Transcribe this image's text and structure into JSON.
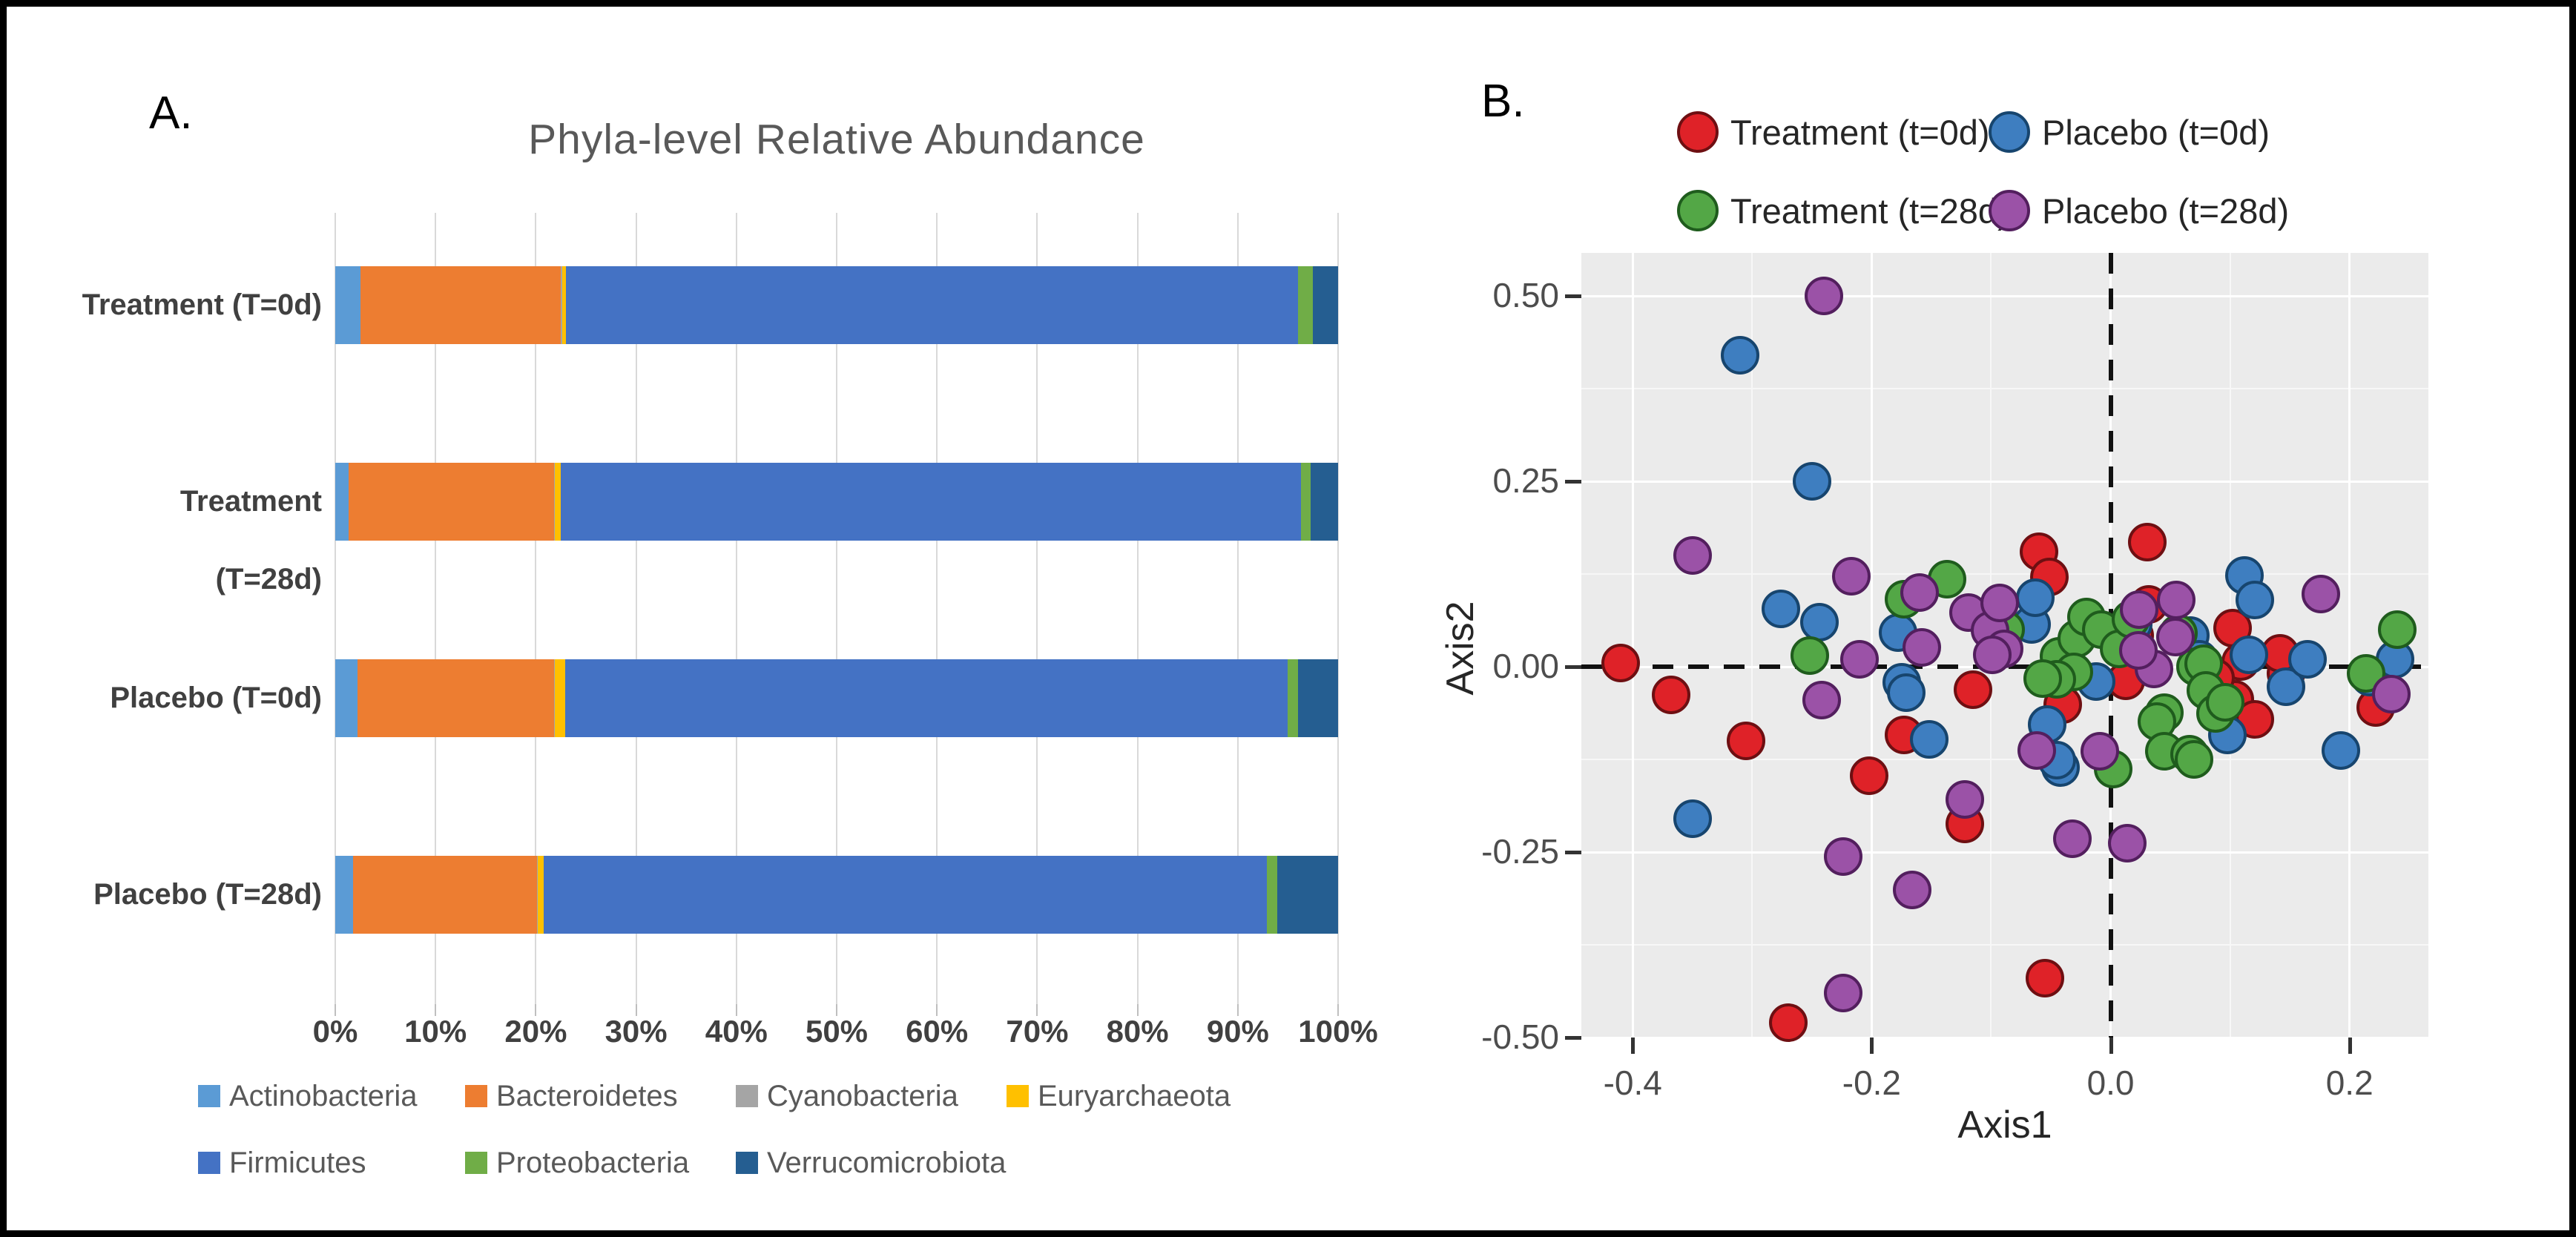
{
  "figure": {
    "panel_a_label": "A.",
    "panel_b_label": "B."
  },
  "chart_data": [
    {
      "type": "bar",
      "orientation": "horizontal-stacked",
      "title": "Phyla-level Relative Abundance",
      "categories": [
        "Treatment (T=0d)",
        "Treatment (T=28d)",
        "Placebo (T=0d)",
        "Placebo (T=28d)"
      ],
      "x_tick_labels": [
        "0%",
        "10%",
        "20%",
        "30%",
        "40%",
        "50%",
        "60%",
        "70%",
        "80%",
        "90%",
        "100%"
      ],
      "xlim": [
        0,
        100
      ],
      "grid": true,
      "legend_position": "bottom",
      "series": [
        {
          "name": "Actinobacteria",
          "color": "#5B9BD5",
          "values": [
            2.5,
            1.3,
            2.2,
            1.8
          ]
        },
        {
          "name": "Bacteroidetes",
          "color": "#ED7D31",
          "values": [
            20.0,
            20.5,
            19.6,
            18.3
          ]
        },
        {
          "name": "Cyanobacteria",
          "color": "#A5A5A5",
          "values": [
            0.1,
            0.1,
            0.1,
            0.1
          ]
        },
        {
          "name": "Euryarchaeota",
          "color": "#FFC000",
          "values": [
            0.4,
            0.6,
            1.0,
            0.6
          ]
        },
        {
          "name": "Firmicutes",
          "color": "#4472C4",
          "values": [
            73.0,
            73.8,
            72.1,
            72.1
          ]
        },
        {
          "name": "Proteobacteria",
          "color": "#70AD47",
          "values": [
            1.5,
            1.0,
            1.0,
            1.0
          ]
        },
        {
          "name": "Verrucomicrobiota",
          "color": "#255E91",
          "values": [
            2.5,
            2.7,
            4.0,
            6.1
          ]
        }
      ]
    },
    {
      "type": "scatter",
      "xlabel": "Axis1",
      "ylabel": "Axis2",
      "xlim": [
        -0.443,
        0.266
      ],
      "ylim": [
        -0.5,
        0.558
      ],
      "x_ticks": [
        -0.4,
        -0.2,
        0.0,
        0.2
      ],
      "y_ticks": [
        0.5,
        0.25,
        0.0,
        -0.25,
        -0.5
      ],
      "x_tick_labels": [
        "-0.4",
        "-0.2",
        "0.0",
        "0.2"
      ],
      "y_tick_labels": [
        "0.50",
        "0.25",
        "0.00",
        "-0.25",
        "-0.50"
      ],
      "x_minor_ticks": [
        -0.3,
        -0.1,
        0.1
      ],
      "y_minor_ticks": [
        0.375,
        0.125,
        -0.125,
        -0.375
      ],
      "reference_lines": {
        "x": 0,
        "y": 0,
        "style": "dashed",
        "color": "#111111"
      },
      "panel_background": "#EBEBEB",
      "legend_position": "top",
      "series": [
        {
          "name": "Treatment (t=0d)",
          "color": "#DF2228",
          "stroke": "#6E0F12",
          "points": [
            [
              -0.41,
              0.005
            ],
            [
              -0.368,
              -0.038
            ],
            [
              -0.305,
              -0.1
            ],
            [
              -0.27,
              -0.48
            ],
            [
              -0.202,
              -0.147
            ],
            [
              -0.173,
              -0.092
            ],
            [
              -0.115,
              -0.031
            ],
            [
              -0.122,
              -0.212
            ],
            [
              -0.055,
              -0.42
            ],
            [
              -0.06,
              0.155
            ],
            [
              -0.051,
              0.121
            ],
            [
              0.031,
              0.168
            ],
            [
              0.032,
              0.084
            ],
            [
              0.02,
              0.042
            ],
            [
              -0.04,
              -0.051
            ],
            [
              0.013,
              -0.019
            ],
            [
              0.102,
              0.052
            ],
            [
              0.109,
              0.007
            ],
            [
              0.104,
              -0.044
            ],
            [
              0.088,
              -0.015
            ],
            [
              0.121,
              -0.071
            ],
            [
              0.147,
              -0.009
            ],
            [
              0.142,
              0.018
            ],
            [
              0.222,
              -0.055
            ],
            [
              0.225,
              -0.012
            ]
          ]
        },
        {
          "name": "Placebo (t=0d)",
          "color": "#3E7EC0",
          "stroke": "#17456E",
          "points": [
            [
              -0.31,
              0.42
            ],
            [
              -0.25,
              0.25
            ],
            [
              -0.35,
              -0.205
            ],
            [
              -0.276,
              0.078
            ],
            [
              -0.244,
              0.06
            ],
            [
              -0.178,
              0.046
            ],
            [
              -0.175,
              -0.021
            ],
            [
              -0.171,
              -0.035
            ],
            [
              -0.152,
              -0.098
            ],
            [
              -0.066,
              0.057
            ],
            [
              -0.063,
              0.093
            ],
            [
              -0.012,
              -0.02
            ],
            [
              -0.053,
              -0.078
            ],
            [
              -0.042,
              -0.136
            ],
            [
              -0.045,
              -0.126
            ],
            [
              0.019,
              0.057
            ],
            [
              0.067,
              0.042
            ],
            [
              0.074,
              0.01
            ],
            [
              0.098,
              -0.092
            ],
            [
              0.112,
              0.123
            ],
            [
              0.116,
              0.016
            ],
            [
              0.121,
              0.09
            ],
            [
              0.147,
              -0.027
            ],
            [
              0.165,
              0.01
            ],
            [
              0.193,
              -0.113
            ],
            [
              0.217,
              -0.014
            ],
            [
              0.238,
              0.01
            ]
          ]
        },
        {
          "name": "Treatment (t=28d)",
          "color": "#53A746",
          "stroke": "#1F5C1D",
          "points": [
            [
              -0.252,
              0.015
            ],
            [
              -0.173,
              0.091
            ],
            [
              -0.137,
              0.118
            ],
            [
              -0.088,
              0.05
            ],
            [
              -0.043,
              0.014
            ],
            [
              -0.028,
              0.038
            ],
            [
              -0.02,
              0.067
            ],
            [
              -0.008,
              0.05
            ],
            [
              0.007,
              0.024
            ],
            [
              0.017,
              0.064
            ],
            [
              0.057,
              0.045
            ],
            [
              0.071,
              0.0
            ],
            [
              0.078,
              0.004
            ],
            [
              0.08,
              -0.032
            ],
            [
              0.045,
              -0.062
            ],
            [
              0.039,
              -0.074
            ],
            [
              0.045,
              -0.114
            ],
            [
              0.066,
              -0.118
            ],
            [
              0.07,
              -0.125
            ],
            [
              0.002,
              -0.138
            ],
            [
              -0.031,
              -0.007
            ],
            [
              -0.045,
              -0.017
            ],
            [
              -0.057,
              -0.016
            ],
            [
              0.088,
              -0.063
            ],
            [
              0.096,
              -0.048
            ],
            [
              0.214,
              -0.009
            ],
            [
              0.24,
              0.05
            ]
          ]
        },
        {
          "name": "Placebo (t=28d)",
          "color": "#9B52A7",
          "stroke": "#531F5E",
          "points": [
            [
              -0.24,
              0.5
            ],
            [
              -0.35,
              0.15
            ],
            [
              -0.217,
              0.122
            ],
            [
              -0.16,
              0.1
            ],
            [
              -0.119,
              0.073
            ],
            [
              -0.101,
              0.049
            ],
            [
              -0.158,
              0.026
            ],
            [
              -0.21,
              0.01
            ],
            [
              -0.093,
              0.086
            ],
            [
              -0.089,
              0.024
            ],
            [
              -0.099,
              0.016
            ],
            [
              0.024,
              0.077
            ],
            [
              0.055,
              0.09
            ],
            [
              0.036,
              -0.003
            ],
            [
              0.023,
              0.022
            ],
            [
              0.054,
              0.04
            ],
            [
              0.176,
              0.098
            ],
            [
              0.235,
              -0.037
            ],
            [
              -0.242,
              -0.045
            ],
            [
              -0.122,
              -0.179
            ],
            [
              -0.166,
              -0.301
            ],
            [
              -0.224,
              -0.256
            ],
            [
              -0.224,
              -0.44
            ],
            [
              -0.032,
              -0.232
            ],
            [
              0.014,
              -0.238
            ],
            [
              -0.062,
              -0.113
            ],
            [
              -0.009,
              -0.114
            ]
          ]
        }
      ]
    }
  ]
}
